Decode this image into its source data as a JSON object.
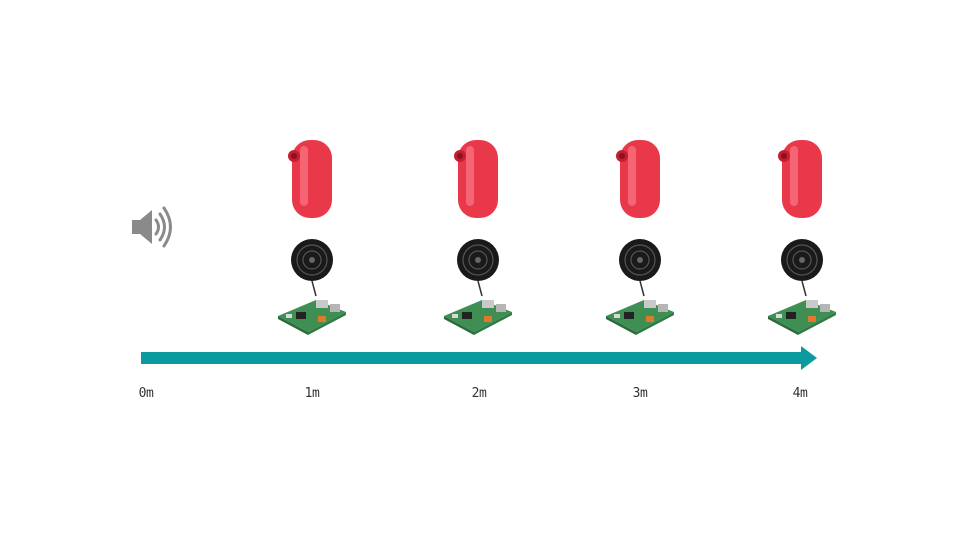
{
  "sound_source": {
    "icon": "speaker-volume-icon",
    "color": "#8a8a8a"
  },
  "stations": [
    {
      "device": "red-smart-speaker",
      "mic": "black-microphone",
      "board": "raspberry-pi-board"
    },
    {
      "device": "red-smart-speaker",
      "mic": "black-microphone",
      "board": "raspberry-pi-board"
    },
    {
      "device": "red-smart-speaker",
      "mic": "black-microphone",
      "board": "raspberry-pi-board"
    },
    {
      "device": "red-smart-speaker",
      "mic": "black-microphone",
      "board": "raspberry-pi-board"
    }
  ],
  "axis": {
    "color": "#0b9aa0",
    "labels": [
      "0m",
      "1m",
      "2m",
      "3m",
      "4m"
    ]
  },
  "colors": {
    "device": "#e8384a",
    "mic": "#1a1a1a",
    "board": "#3f8f54"
  }
}
